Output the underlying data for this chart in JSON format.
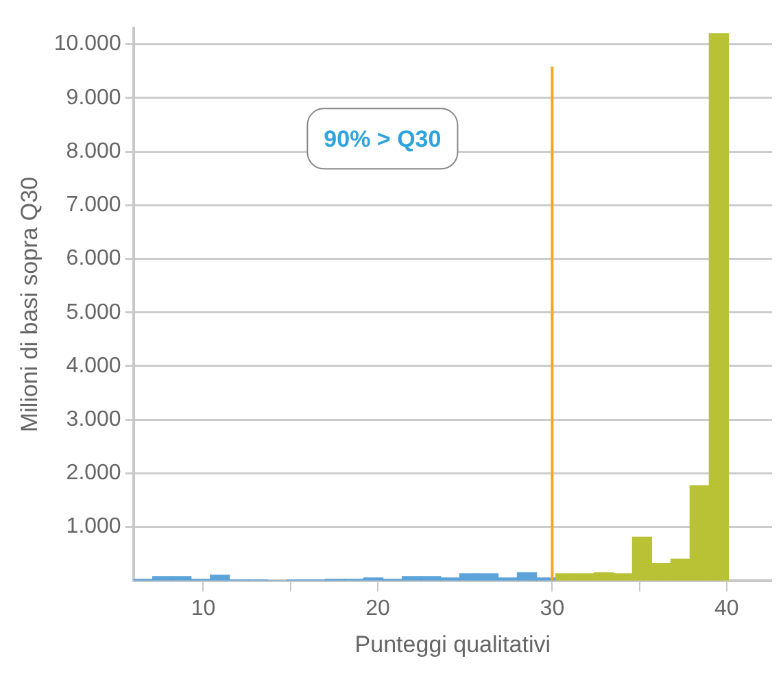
{
  "chart_data": {
    "type": "histogram",
    "xlabel": "Punteggi qualitativi",
    "ylabel": "Milioni di basi sopra Q30",
    "annotations": [
      "90% > Q30"
    ],
    "bins": [
      6,
      7.1,
      8.2,
      9.3,
      10.4,
      11.5,
      12.6,
      13.7,
      14.8,
      15.9,
      17,
      18.1,
      19.2,
      20.3,
      21.4,
      22.5,
      23.6,
      24.7,
      25.8,
      26.9,
      28,
      29.1,
      30.2,
      31.3,
      32.4,
      33.5,
      34.6,
      35.7,
      36.8,
      37.9,
      39,
      40.1
    ],
    "values": [
      25,
      75,
      75,
      25,
      100,
      10,
      10,
      0,
      10,
      10,
      25,
      25,
      50,
      25,
      75,
      75,
      50,
      125,
      125,
      50,
      150,
      50,
      125,
      125,
      150,
      125,
      810,
      320,
      400,
      1770,
      10200
    ],
    "colors": [
      "#5ba3d9",
      "#5ba3d9",
      "#5ba3d9",
      "#5ba3d9",
      "#5ba3d9",
      "#5ba3d9",
      "#5ba3d9",
      "#5ba3d9",
      "#5ba3d9",
      "#5ba3d9",
      "#5ba3d9",
      "#5ba3d9",
      "#5ba3d9",
      "#5ba3d9",
      "#5ba3d9",
      "#5ba3d9",
      "#5ba3d9",
      "#5ba3d9",
      "#5ba3d9",
      "#5ba3d9",
      "#5ba3d9",
      "#5ba3d9",
      "#b8c234",
      "#b8c234",
      "#b8c234",
      "#b8c234",
      "#b8c234",
      "#b8c234",
      "#b8c234",
      "#b8c234",
      "#b8c234"
    ],
    "xlim": [
      6,
      42.6
    ],
    "xticks": [
      10,
      {
        "value": 15,
        "label": null
      },
      20,
      30,
      {
        "value": 35,
        "label": null
      },
      40
    ],
    "ylim": [
      0,
      10300
    ],
    "yticks": [
      {
        "value": 1000,
        "label": "1.000"
      },
      {
        "value": 2000,
        "label": "2.000"
      },
      {
        "value": 3000,
        "label": "3.000"
      },
      {
        "value": 4000,
        "label": "4.000"
      },
      {
        "value": 5000,
        "label": "5.000"
      },
      {
        "value": 6000,
        "label": "6.000"
      },
      {
        "value": 7000,
        "label": "7.000"
      },
      {
        "value": 8000,
        "label": "8.000"
      },
      {
        "value": 9000,
        "label": "9.000"
      },
      {
        "value": 10000,
        "label": "10.000"
      }
    ],
    "ref_lines": [
      {
        "axis": "x",
        "value": 30,
        "color": "#f5a623"
      }
    ],
    "grid": "y",
    "legend": false
  }
}
